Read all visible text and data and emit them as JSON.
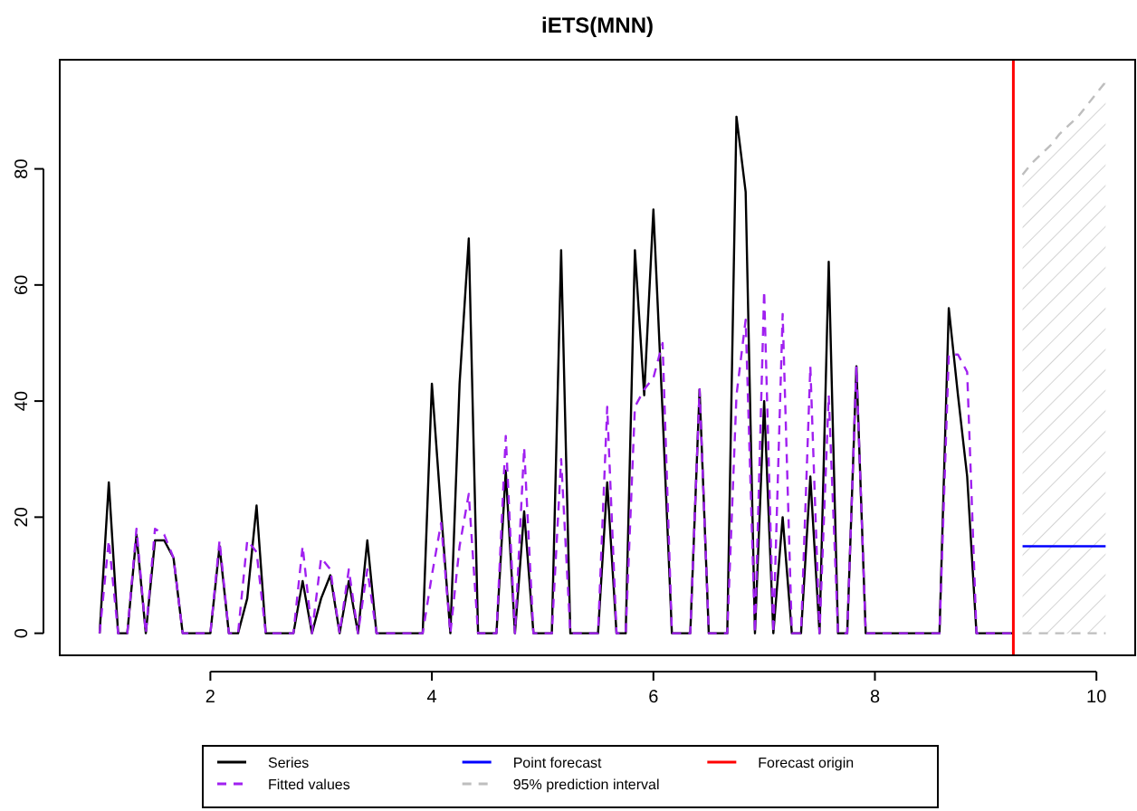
{
  "chart_data": {
    "type": "line",
    "title": "iETS(MNN)",
    "x": [
      1,
      1.083,
      1.167,
      1.25,
      1.333,
      1.417,
      1.5,
      1.583,
      1.667,
      1.75,
      1.833,
      1.917,
      2,
      2.083,
      2.167,
      2.25,
      2.333,
      2.417,
      2.5,
      2.583,
      2.667,
      2.75,
      2.833,
      2.917,
      3,
      3.083,
      3.167,
      3.25,
      3.333,
      3.417,
      3.5,
      3.583,
      3.667,
      3.75,
      3.833,
      3.917,
      4,
      4.083,
      4.167,
      4.25,
      4.333,
      4.417,
      4.5,
      4.583,
      4.667,
      4.75,
      4.833,
      4.917,
      5,
      5.083,
      5.167,
      5.25,
      5.333,
      5.417,
      5.5,
      5.583,
      5.667,
      5.75,
      5.833,
      5.917,
      6,
      6.083,
      6.167,
      6.25,
      6.333,
      6.417,
      6.5,
      6.583,
      6.667,
      6.75,
      6.833,
      6.917,
      7,
      7.083,
      7.167,
      7.25,
      7.333,
      7.417,
      7.5,
      7.583,
      7.667,
      7.75,
      7.833,
      7.917,
      8,
      8.083,
      8.167,
      8.25,
      8.333,
      8.417,
      8.5,
      8.583,
      8.667,
      8.75,
      8.833,
      8.917,
      9,
      9.083,
      9.167,
      9.25
    ],
    "series": [
      {
        "name": "Series",
        "color": "#000000",
        "line_style": "solid",
        "values": [
          0,
          26,
          0,
          0,
          17,
          0,
          16,
          16,
          13,
          0,
          0,
          0,
          0,
          15,
          0,
          0,
          6,
          22,
          0,
          0,
          0,
          0,
          9,
          0,
          6,
          10,
          0,
          9,
          0,
          16,
          0,
          0,
          0,
          0,
          0,
          0,
          43,
          21,
          0,
          43,
          68,
          0,
          0,
          0,
          28,
          0,
          21,
          0,
          0,
          0,
          66,
          0,
          0,
          0,
          0,
          26,
          0,
          0,
          66,
          41,
          73,
          38,
          0,
          0,
          0,
          42,
          0,
          0,
          0,
          89,
          76,
          0,
          40,
          0,
          20,
          0,
          0,
          27,
          0,
          64,
          0,
          0,
          46,
          0,
          0,
          0,
          0,
          0,
          0,
          0,
          0,
          0,
          56,
          41,
          27,
          0,
          0,
          0,
          0,
          0
        ]
      },
      {
        "name": "Fitted values",
        "color": "#a020f0",
        "line_style": "dashed",
        "values": [
          0,
          16,
          0,
          0,
          18,
          0,
          18,
          17,
          13,
          0,
          0,
          0,
          0,
          16,
          0,
          0,
          16,
          14,
          0,
          0,
          0,
          0,
          15,
          0,
          13,
          11,
          0,
          11,
          0,
          11,
          0,
          0,
          0,
          0,
          0,
          0,
          10,
          19,
          0,
          15,
          24,
          0,
          0,
          0,
          34,
          0,
          32,
          0,
          0,
          0,
          30,
          0,
          0,
          0,
          0,
          39,
          0,
          0,
          39,
          42,
          44,
          50,
          0,
          0,
          0,
          42,
          0,
          0,
          0,
          41,
          54,
          0,
          59,
          0,
          55,
          0,
          0,
          46,
          0,
          41,
          0,
          0,
          46,
          0,
          0,
          0,
          0,
          0,
          0,
          0,
          0,
          0,
          48,
          48,
          45,
          0,
          0,
          0,
          0,
          0
        ]
      },
      {
        "name": "Point forecast",
        "color": "#0000ff",
        "line_style": "solid",
        "x": [
          9.333,
          9.417,
          9.5,
          9.583,
          9.667,
          9.75,
          9.833,
          9.917,
          10,
          10.083
        ],
        "values": [
          15,
          15,
          15,
          15,
          15,
          15,
          15,
          15,
          15,
          15
        ],
        "lower": [
          0,
          0,
          0,
          0,
          0,
          0,
          0,
          0,
          0,
          0
        ],
        "upper": [
          79,
          81,
          82.5,
          84,
          86,
          87.5,
          89,
          91,
          93,
          95
        ]
      },
      {
        "name": "95% prediction interval",
        "color": "#bebebe",
        "line_style": "dashed",
        "x": [
          9.333,
          9.417,
          9.5,
          9.583,
          9.667,
          9.75,
          9.833,
          9.917,
          10,
          10.083
        ],
        "values": [
          79,
          81,
          82.5,
          84,
          86,
          87.5,
          89,
          91,
          93,
          95
        ]
      },
      {
        "color": "#bebebe",
        "line_style": "dashed",
        "x": [
          9.333,
          9.417,
          9.5,
          9.583,
          9.667,
          9.75,
          9.833,
          9.917,
          10,
          10.083
        ],
        "values": [
          0,
          0,
          0,
          0,
          0,
          0,
          0,
          0,
          0,
          0
        ]
      }
    ],
    "ref_lines": [
      {
        "axis": "x",
        "value": 9.25,
        "label": "Forecast origin",
        "color": "#ff0000"
      }
    ],
    "xlim": [
      0.64,
      10.35
    ],
    "ylim": [
      -3.8,
      98.8
    ],
    "xticks": [
      2,
      4,
      6,
      8,
      10
    ],
    "yticks": [
      0,
      20,
      40,
      60,
      80
    ],
    "legend": "bottom",
    "grid": false,
    "marker": "none"
  }
}
